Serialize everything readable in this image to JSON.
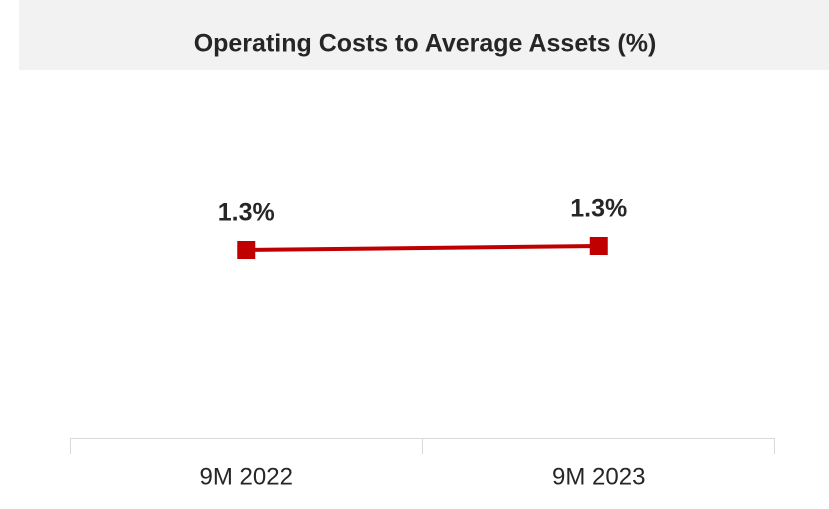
{
  "chart_data": {
    "type": "line",
    "title": "Operating Costs to Average Assets (%)",
    "categories": [
      "9M 2022",
      "9M 2023"
    ],
    "series": [
      {
        "name": "Operating Costs to Average Assets",
        "color": "#c00000",
        "values": [
          1.29,
          1.3
        ],
        "value_labels": [
          "1.3%",
          "1.3%"
        ]
      }
    ],
    "ylim": [
      0.82,
      1.74
    ]
  }
}
